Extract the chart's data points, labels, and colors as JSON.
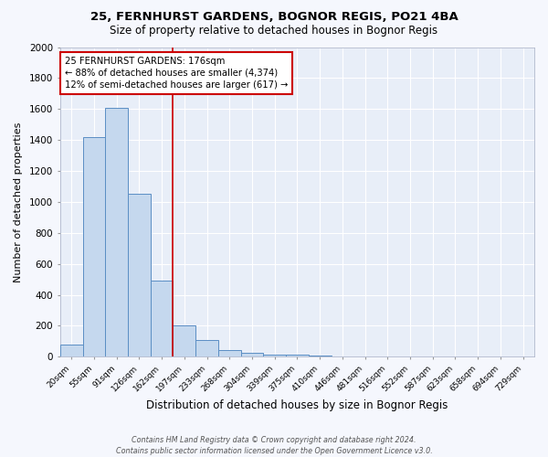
{
  "title": "25, FERNHURST GARDENS, BOGNOR REGIS, PO21 4BA",
  "subtitle": "Size of property relative to detached houses in Bognor Regis",
  "xlabel": "Distribution of detached houses by size in Bognor Regis",
  "ylabel": "Number of detached properties",
  "footer_line1": "Contains HM Land Registry data © Crown copyright and database right 2024.",
  "footer_line2": "Contains public sector information licensed under the Open Government Licence v3.0.",
  "categories": [
    "20sqm",
    "55sqm",
    "91sqm",
    "126sqm",
    "162sqm",
    "197sqm",
    "233sqm",
    "268sqm",
    "304sqm",
    "339sqm",
    "375sqm",
    "410sqm",
    "446sqm",
    "481sqm",
    "516sqm",
    "552sqm",
    "587sqm",
    "623sqm",
    "658sqm",
    "694sqm",
    "729sqm"
  ],
  "values": [
    80,
    1420,
    1610,
    1050,
    490,
    205,
    107,
    45,
    25,
    15,
    12,
    10,
    0,
    0,
    0,
    0,
    0,
    0,
    0,
    0,
    0
  ],
  "bar_color": "#c5d8ee",
  "bar_edge_color": "#5b8ec4",
  "fig_background_color": "#f5f7fd",
  "ax_background_color": "#e8eef8",
  "grid_color": "#ffffff",
  "red_line_x": 4.5,
  "annotation_text": "25 FERNHURST GARDENS: 176sqm\n← 88% of detached houses are smaller (4,374)\n12% of semi-detached houses are larger (617) →",
  "annotation_box_color": "#ffffff",
  "annotation_box_edge_color": "#cc0000",
  "ylim": [
    0,
    2000
  ],
  "yticks": [
    0,
    200,
    400,
    600,
    800,
    1000,
    1200,
    1400,
    1600,
    1800,
    2000
  ]
}
